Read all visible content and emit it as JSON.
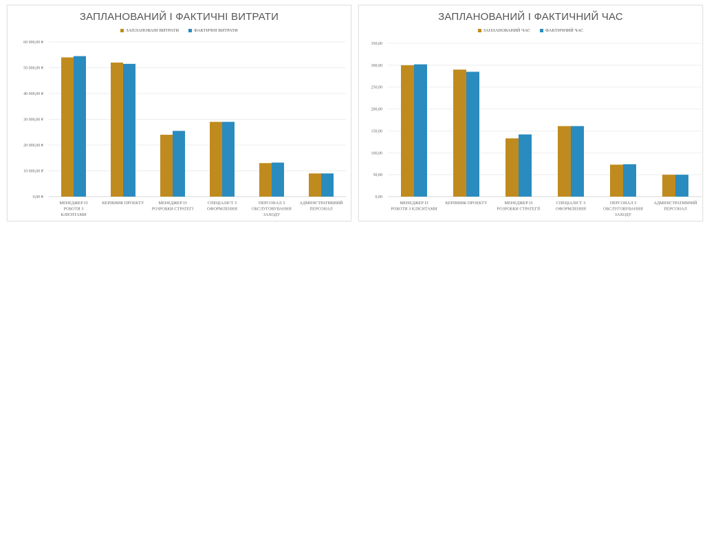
{
  "chart_data": [
    {
      "type": "bar",
      "title": "ЗАПЛАНОВАНИЙ І ФАКТИЧНІ ВИТРАТИ",
      "categories": [
        [
          "МЕНЕДЖЕР ІЗ",
          "РОБОТИ З",
          "КЛІЄНТАМИ"
        ],
        [
          "КЕРІВНИК ПРОЕКТУ"
        ],
        [
          "МЕНЕДЖЕР ІЗ",
          "РОЗРОБКИ СТРАТЕГІ"
        ],
        [
          "СПЕЦІАЛІСТ З",
          "ОФОРМЛЕННЯ"
        ],
        [
          "ПЕРСОНАЛ З",
          "ОБСЛУГОВУВАННЯ",
          "ЗАХОДУ"
        ],
        [
          "АДМІНІСТРАТИВНИЙ",
          "ПЕРСОНАЛ"
        ]
      ],
      "series": [
        {
          "name": "ЗАПЛАНОВАНІ ВИТРАТИ",
          "color": "#C08B1E",
          "values": [
            54000,
            52000,
            24000,
            29000,
            13000,
            9000
          ]
        },
        {
          "name": "ФАКТИЧНІ ВИТРАТИ",
          "color": "#2A8BBF",
          "values": [
            54500,
            51500,
            25500,
            29000,
            13200,
            9000
          ]
        }
      ],
      "ylim": [
        0,
        60000
      ],
      "yticks": [
        0,
        10000,
        20000,
        30000,
        40000,
        50000,
        60000
      ],
      "ytick_labels": [
        "0,00 ₴",
        "10 000,00 ₴",
        "20 000,00 ₴",
        "30 000,00 ₴",
        "40 000,00 ₴",
        "50 000,00 ₴",
        "60 000,00 ₴"
      ],
      "grid": true,
      "legend": "top-center",
      "xlabel": "",
      "ylabel": ""
    },
    {
      "type": "bar",
      "title": "ЗАПЛАНОВАНИЙ І ФАКТИЧНИЙ ЧАС",
      "categories": [
        [
          "МЕНЕДЖЕР ІЗ",
          "РОБОТИ З КЛІЄНТАМИ"
        ],
        [
          "КЕРІВНИК ПРОЕКТУ"
        ],
        [
          "МЕНЕДЖЕР ІЗ",
          "РОЗРОБКИ СТРАТЕГІЇ"
        ],
        [
          "СПЕЦІАЛІСТ З",
          "ОФОРМЛЕННЯ"
        ],
        [
          "ПЕРСОНАЛ З",
          "ОБСЛУГОВУВАННЯ",
          "ЗАХОДУ"
        ],
        [
          "АДМІНІСТРАТИВНИЙ",
          "ПЕРСОНАЛ"
        ]
      ],
      "series": [
        {
          "name": "ЗАПЛАНОВАНИЙ ЧАС",
          "color": "#C08B1E",
          "values": [
            300,
            290,
            133,
            161,
            73,
            50
          ]
        },
        {
          "name": "ФАКТИЧНИЙ ЧАС",
          "color": "#2A8BBF",
          "values": [
            302,
            285,
            142,
            161,
            74,
            50
          ]
        }
      ],
      "ylim": [
        0,
        350
      ],
      "yticks": [
        0,
        50,
        100,
        150,
        200,
        250,
        300,
        350
      ],
      "ytick_labels": [
        "0,00",
        "50,00",
        "100,00",
        "150,00",
        "200,00",
        "250,00",
        "300,00",
        "350,00"
      ],
      "grid": true,
      "legend": "top-center",
      "xlabel": "",
      "ylabel": ""
    }
  ]
}
